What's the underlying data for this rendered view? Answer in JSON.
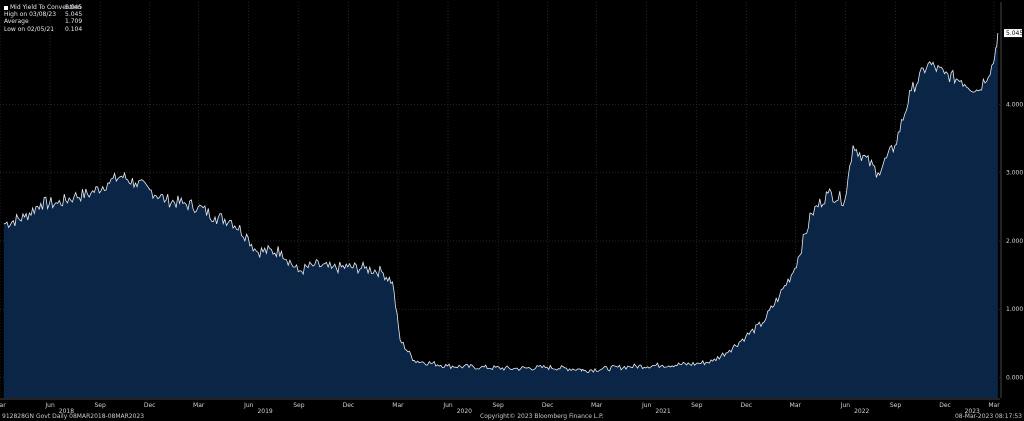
{
  "legend": {
    "rows": [
      {
        "label": "Mid Yield To Convention",
        "value": "5.045"
      },
      {
        "label": "High on 03/08/23",
        "value": "5.045"
      },
      {
        "label": "Average",
        "value": "1.709"
      },
      {
        "label": "Low on 02/05/21",
        "value": "0.104"
      }
    ]
  },
  "last_value_tag": "5.045",
  "footer": {
    "left": "912828GN Govt  Daily 08MAR2018-08MAR2023",
    "center": "Copyright© 2023 Bloomberg Finance L.P.",
    "right": "08-Mar-2023 08:17:53"
  },
  "colors": {
    "background": "#000000",
    "area_fill": "#0a2546",
    "line": "#e8ecf2",
    "grid": "#4a4a4a"
  },
  "chart_data": {
    "type": "area",
    "series": [
      {
        "name": "Mid Yield To Convention",
        "x": [
          "2018-03-08",
          "2018-04-15",
          "2018-05-15",
          "2018-06-15",
          "2018-07-15",
          "2018-08-15",
          "2018-09-15",
          "2018-10-10",
          "2018-11-05",
          "2018-12-01",
          "2018-12-31",
          "2019-01-31",
          "2019-02-28",
          "2019-03-31",
          "2019-04-30",
          "2019-05-31",
          "2019-06-15",
          "2019-07-31",
          "2019-08-31",
          "2019-09-30",
          "2019-10-31",
          "2019-11-30",
          "2019-12-31",
          "2020-01-31",
          "2020-02-20",
          "2020-03-05",
          "2020-03-31",
          "2020-05-31",
          "2020-07-31",
          "2020-09-30",
          "2020-11-30",
          "2021-01-31",
          "2021-02-05",
          "2021-04-30",
          "2021-06-30",
          "2021-08-31",
          "2021-09-30",
          "2021-10-31",
          "2021-11-30",
          "2021-12-31",
          "2022-01-31",
          "2022-02-28",
          "2022-03-31",
          "2022-04-30",
          "2022-05-31",
          "2022-06-15",
          "2022-07-31",
          "2022-08-31",
          "2022-09-30",
          "2022-10-31",
          "2022-11-30",
          "2022-12-31",
          "2023-01-31",
          "2023-02-28",
          "2023-03-08"
        ],
        "y": [
          2.25,
          2.35,
          2.55,
          2.55,
          2.65,
          2.7,
          2.85,
          2.95,
          2.85,
          2.75,
          2.6,
          2.55,
          2.5,
          2.35,
          2.3,
          2.05,
          1.85,
          1.85,
          1.55,
          1.65,
          1.6,
          1.62,
          1.6,
          1.55,
          1.4,
          0.55,
          0.25,
          0.17,
          0.15,
          0.13,
          0.15,
          0.12,
          0.104,
          0.16,
          0.18,
          0.2,
          0.24,
          0.4,
          0.6,
          0.8,
          1.2,
          1.6,
          2.4,
          2.7,
          2.6,
          3.4,
          3.0,
          3.4,
          4.2,
          4.6,
          4.45,
          4.35,
          4.2,
          4.6,
          5.045
        ]
      }
    ],
    "x_tick_labels": [
      {
        "date": "2018-03-01",
        "label": "Mar"
      },
      {
        "date": "2018-06-01",
        "label": "Jun"
      },
      {
        "date": "2018-09-01",
        "label": "Sep"
      },
      {
        "date": "2018-12-01",
        "label": "Dec"
      },
      {
        "date": "2019-03-01",
        "label": "Mar"
      },
      {
        "date": "2019-06-01",
        "label": "Jun"
      },
      {
        "date": "2019-09-01",
        "label": "Sep"
      },
      {
        "date": "2019-12-01",
        "label": "Dec"
      },
      {
        "date": "2020-03-01",
        "label": "Mar"
      },
      {
        "date": "2020-06-01",
        "label": "Jun"
      },
      {
        "date": "2020-09-01",
        "label": "Sep"
      },
      {
        "date": "2020-12-01",
        "label": "Dec"
      },
      {
        "date": "2021-03-01",
        "label": "Mar"
      },
      {
        "date": "2021-06-01",
        "label": "Jun"
      },
      {
        "date": "2021-09-01",
        "label": "Sep"
      },
      {
        "date": "2021-12-01",
        "label": "Dec"
      },
      {
        "date": "2022-03-01",
        "label": "Mar"
      },
      {
        "date": "2022-06-01",
        "label": "Jun"
      },
      {
        "date": "2022-09-01",
        "label": "Sep"
      },
      {
        "date": "2022-12-01",
        "label": "Dec"
      },
      {
        "date": "2023-03-01",
        "label": "Mar"
      }
    ],
    "year_labels": [
      {
        "date": "2018-07-01",
        "label": "2018"
      },
      {
        "date": "2019-07-01",
        "label": "2019"
      },
      {
        "date": "2020-07-01",
        "label": "2020"
      },
      {
        "date": "2021-07-01",
        "label": "2021"
      },
      {
        "date": "2022-07-01",
        "label": "2022"
      },
      {
        "date": "2023-01-20",
        "label": "2023"
      }
    ],
    "y_ticks": [
      0,
      1,
      2,
      3,
      4
    ],
    "y_tick_labels": [
      "0.000",
      "1.000",
      "2.000",
      "3.000",
      "4.000"
    ],
    "ylim": [
      -0.3,
      5.5
    ],
    "xlim": [
      "2018-03-01",
      "2023-03-12"
    ],
    "grid": true,
    "y_axis_side": "right",
    "legend_position": "top-left"
  }
}
